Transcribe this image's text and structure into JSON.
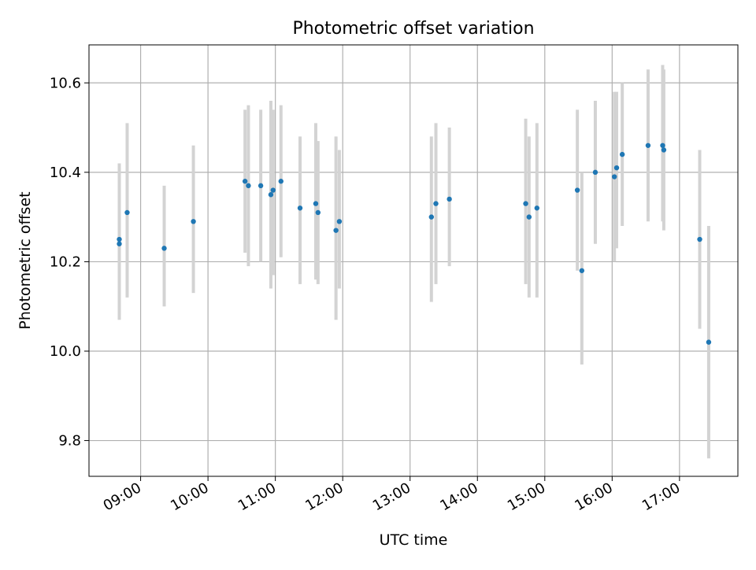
{
  "chart_data": {
    "type": "scatter",
    "title": "Photometric offset variation",
    "xlabel": "UTC time",
    "ylabel": "Photometric offset",
    "x_unit": "UTC time (HH:MM)",
    "xlim": [
      "08:14",
      "17:52"
    ],
    "ylim": [
      9.72,
      10.685
    ],
    "x_ticks": [
      "09:00",
      "10:00",
      "11:00",
      "12:00",
      "13:00",
      "14:00",
      "15:00",
      "16:00",
      "17:00"
    ],
    "y_ticks": [
      "9.8",
      "10.0",
      "10.2",
      "10.4",
      "10.6"
    ],
    "grid": true,
    "colors": {
      "point": "#1f77b4",
      "errorbar": "#d3d3d3",
      "grid": "#b0b0b0"
    },
    "series": [
      {
        "points": [
          {
            "x": "08:41",
            "y": 10.25,
            "y_low": 10.07,
            "y_high": 10.42
          },
          {
            "x": "08:41",
            "y": 10.24,
            "y_low": 10.08,
            "y_high": 10.41
          },
          {
            "x": "08:48",
            "y": 10.31,
            "y_low": 10.12,
            "y_high": 10.51
          },
          {
            "x": "09:21",
            "y": 10.23,
            "y_low": 10.1,
            "y_high": 10.37
          },
          {
            "x": "09:47",
            "y": 10.29,
            "y_low": 10.13,
            "y_high": 10.46
          },
          {
            "x": "10:33",
            "y": 10.38,
            "y_low": 10.22,
            "y_high": 10.54
          },
          {
            "x": "10:36",
            "y": 10.37,
            "y_low": 10.19,
            "y_high": 10.55
          },
          {
            "x": "10:47",
            "y": 10.37,
            "y_low": 10.2,
            "y_high": 10.54
          },
          {
            "x": "10:56",
            "y": 10.35,
            "y_low": 10.14,
            "y_high": 10.56
          },
          {
            "x": "10:58",
            "y": 10.36,
            "y_low": 10.17,
            "y_high": 10.54
          },
          {
            "x": "11:05",
            "y": 10.38,
            "y_low": 10.21,
            "y_high": 10.55
          },
          {
            "x": "11:22",
            "y": 10.32,
            "y_low": 10.15,
            "y_high": 10.48
          },
          {
            "x": "11:36",
            "y": 10.33,
            "y_low": 10.16,
            "y_high": 10.51
          },
          {
            "x": "11:38",
            "y": 10.31,
            "y_low": 10.15,
            "y_high": 10.47
          },
          {
            "x": "11:54",
            "y": 10.27,
            "y_low": 10.07,
            "y_high": 10.48
          },
          {
            "x": "11:57",
            "y": 10.29,
            "y_low": 10.14,
            "y_high": 10.45
          },
          {
            "x": "13:19",
            "y": 10.3,
            "y_low": 10.11,
            "y_high": 10.48
          },
          {
            "x": "13:23",
            "y": 10.33,
            "y_low": 10.15,
            "y_high": 10.51
          },
          {
            "x": "13:35",
            "y": 10.34,
            "y_low": 10.19,
            "y_high": 10.5
          },
          {
            "x": "14:43",
            "y": 10.33,
            "y_low": 10.15,
            "y_high": 10.52
          },
          {
            "x": "14:46",
            "y": 10.3,
            "y_low": 10.12,
            "y_high": 10.48
          },
          {
            "x": "14:53",
            "y": 10.32,
            "y_low": 10.12,
            "y_high": 10.51
          },
          {
            "x": "15:29",
            "y": 10.36,
            "y_low": 10.18,
            "y_high": 10.54
          },
          {
            "x": "15:33",
            "y": 10.18,
            "y_low": 9.97,
            "y_high": 10.4
          },
          {
            "x": "15:45",
            "y": 10.4,
            "y_low": 10.24,
            "y_high": 10.56
          },
          {
            "x": "16:02",
            "y": 10.39,
            "y_low": 10.2,
            "y_high": 10.58
          },
          {
            "x": "16:04",
            "y": 10.41,
            "y_low": 10.23,
            "y_high": 10.58
          },
          {
            "x": "16:09",
            "y": 10.44,
            "y_low": 10.28,
            "y_high": 10.6
          },
          {
            "x": "16:32",
            "y": 10.46,
            "y_low": 10.29,
            "y_high": 10.63
          },
          {
            "x": "16:45",
            "y": 10.46,
            "y_low": 10.29,
            "y_high": 10.64
          },
          {
            "x": "16:46",
            "y": 10.45,
            "y_low": 10.27,
            "y_high": 10.63
          },
          {
            "x": "17:18",
            "y": 10.25,
            "y_low": 10.05,
            "y_high": 10.45
          },
          {
            "x": "17:26",
            "y": 10.02,
            "y_low": 9.76,
            "y_high": 10.28
          }
        ]
      }
    ]
  }
}
